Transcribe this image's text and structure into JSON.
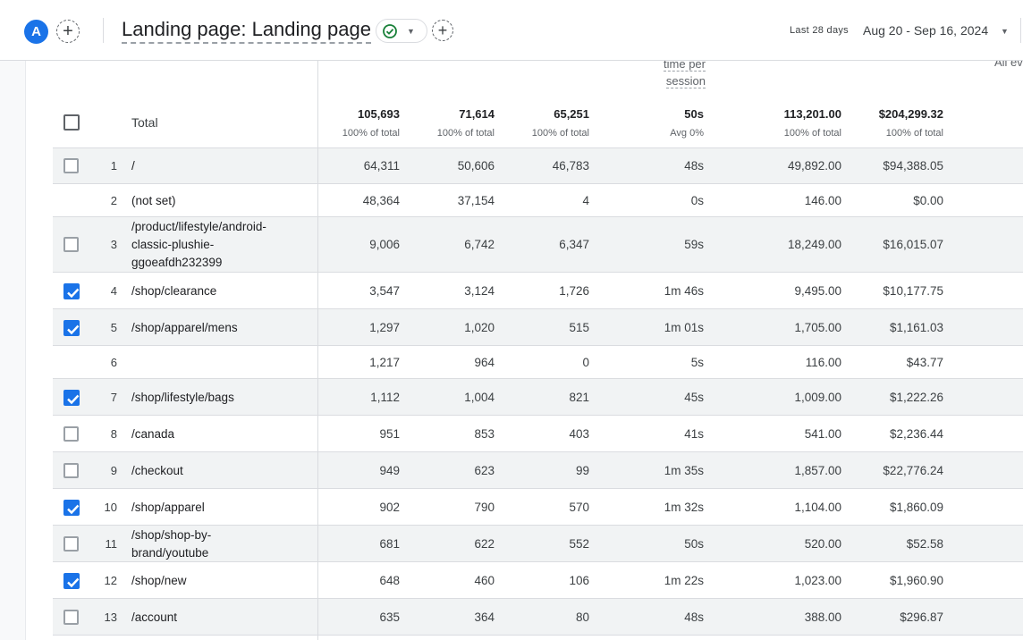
{
  "header": {
    "avatar_letter": "A",
    "title": "Landing page: Landing page",
    "date_label": "Last 28 days",
    "date_range": "Aug 20 - Sep 16, 2024"
  },
  "partial_headers": {
    "time_line1": "time per",
    "time_line2": "session",
    "all_events": "All ev"
  },
  "totals": {
    "label": "Total",
    "values": [
      "105,693",
      "71,614",
      "65,251",
      "50s",
      "113,201.00",
      "$204,299.32"
    ],
    "subs": [
      "100% of total",
      "100% of total",
      "100% of total",
      "Avg 0%",
      "100% of total",
      "100% of total"
    ]
  },
  "rows": [
    {
      "num": "1",
      "label": "/",
      "checkbox": "unchecked",
      "cells": [
        "64,311",
        "50,606",
        "46,783",
        "48s",
        "49,892.00",
        "$94,388.05"
      ]
    },
    {
      "num": "2",
      "label": "(not set)",
      "checkbox": "none",
      "cells": [
        "48,364",
        "37,154",
        "4",
        "0s",
        "146.00",
        "$0.00"
      ]
    },
    {
      "num": "3",
      "label": "/product/lifestyle/android-classic-plushie-ggoeafdh232399",
      "checkbox": "unchecked",
      "cells": [
        "9,006",
        "6,742",
        "6,347",
        "59s",
        "18,249.00",
        "$16,015.07"
      ]
    },
    {
      "num": "4",
      "label": "/shop/clearance",
      "checkbox": "checked",
      "cells": [
        "3,547",
        "3,124",
        "1,726",
        "1m 46s",
        "9,495.00",
        "$10,177.75"
      ]
    },
    {
      "num": "5",
      "label": "/shop/apparel/mens",
      "checkbox": "checked",
      "cells": [
        "1,297",
        "1,020",
        "515",
        "1m 01s",
        "1,705.00",
        "$1,161.03"
      ]
    },
    {
      "num": "6",
      "label": "",
      "checkbox": "none",
      "cells": [
        "1,217",
        "964",
        "0",
        "5s",
        "116.00",
        "$43.77"
      ]
    },
    {
      "num": "7",
      "label": "/shop/lifestyle/bags",
      "checkbox": "checked",
      "cells": [
        "1,112",
        "1,004",
        "821",
        "45s",
        "1,009.00",
        "$1,222.26"
      ]
    },
    {
      "num": "8",
      "label": "/canada",
      "checkbox": "unchecked",
      "cells": [
        "951",
        "853",
        "403",
        "41s",
        "541.00",
        "$2,236.44"
      ]
    },
    {
      "num": "9",
      "label": "/checkout",
      "checkbox": "unchecked",
      "cells": [
        "949",
        "623",
        "99",
        "1m 35s",
        "1,857.00",
        "$22,776.24"
      ]
    },
    {
      "num": "10",
      "label": "/shop/apparel",
      "checkbox": "checked",
      "cells": [
        "902",
        "790",
        "570",
        "1m 32s",
        "1,104.00",
        "$1,860.09"
      ]
    },
    {
      "num": "11",
      "label": "/shop/shop-by-brand/youtube",
      "checkbox": "unchecked",
      "cells": [
        "681",
        "622",
        "552",
        "50s",
        "520.00",
        "$52.58"
      ]
    },
    {
      "num": "12",
      "label": "/shop/new",
      "checkbox": "checked",
      "cells": [
        "648",
        "460",
        "106",
        "1m 22s",
        "1,023.00",
        "$1,960.90"
      ]
    },
    {
      "num": "13",
      "label": "/account",
      "checkbox": "unchecked",
      "cells": [
        "635",
        "364",
        "80",
        "48s",
        "388.00",
        "$296.87"
      ]
    }
  ]
}
